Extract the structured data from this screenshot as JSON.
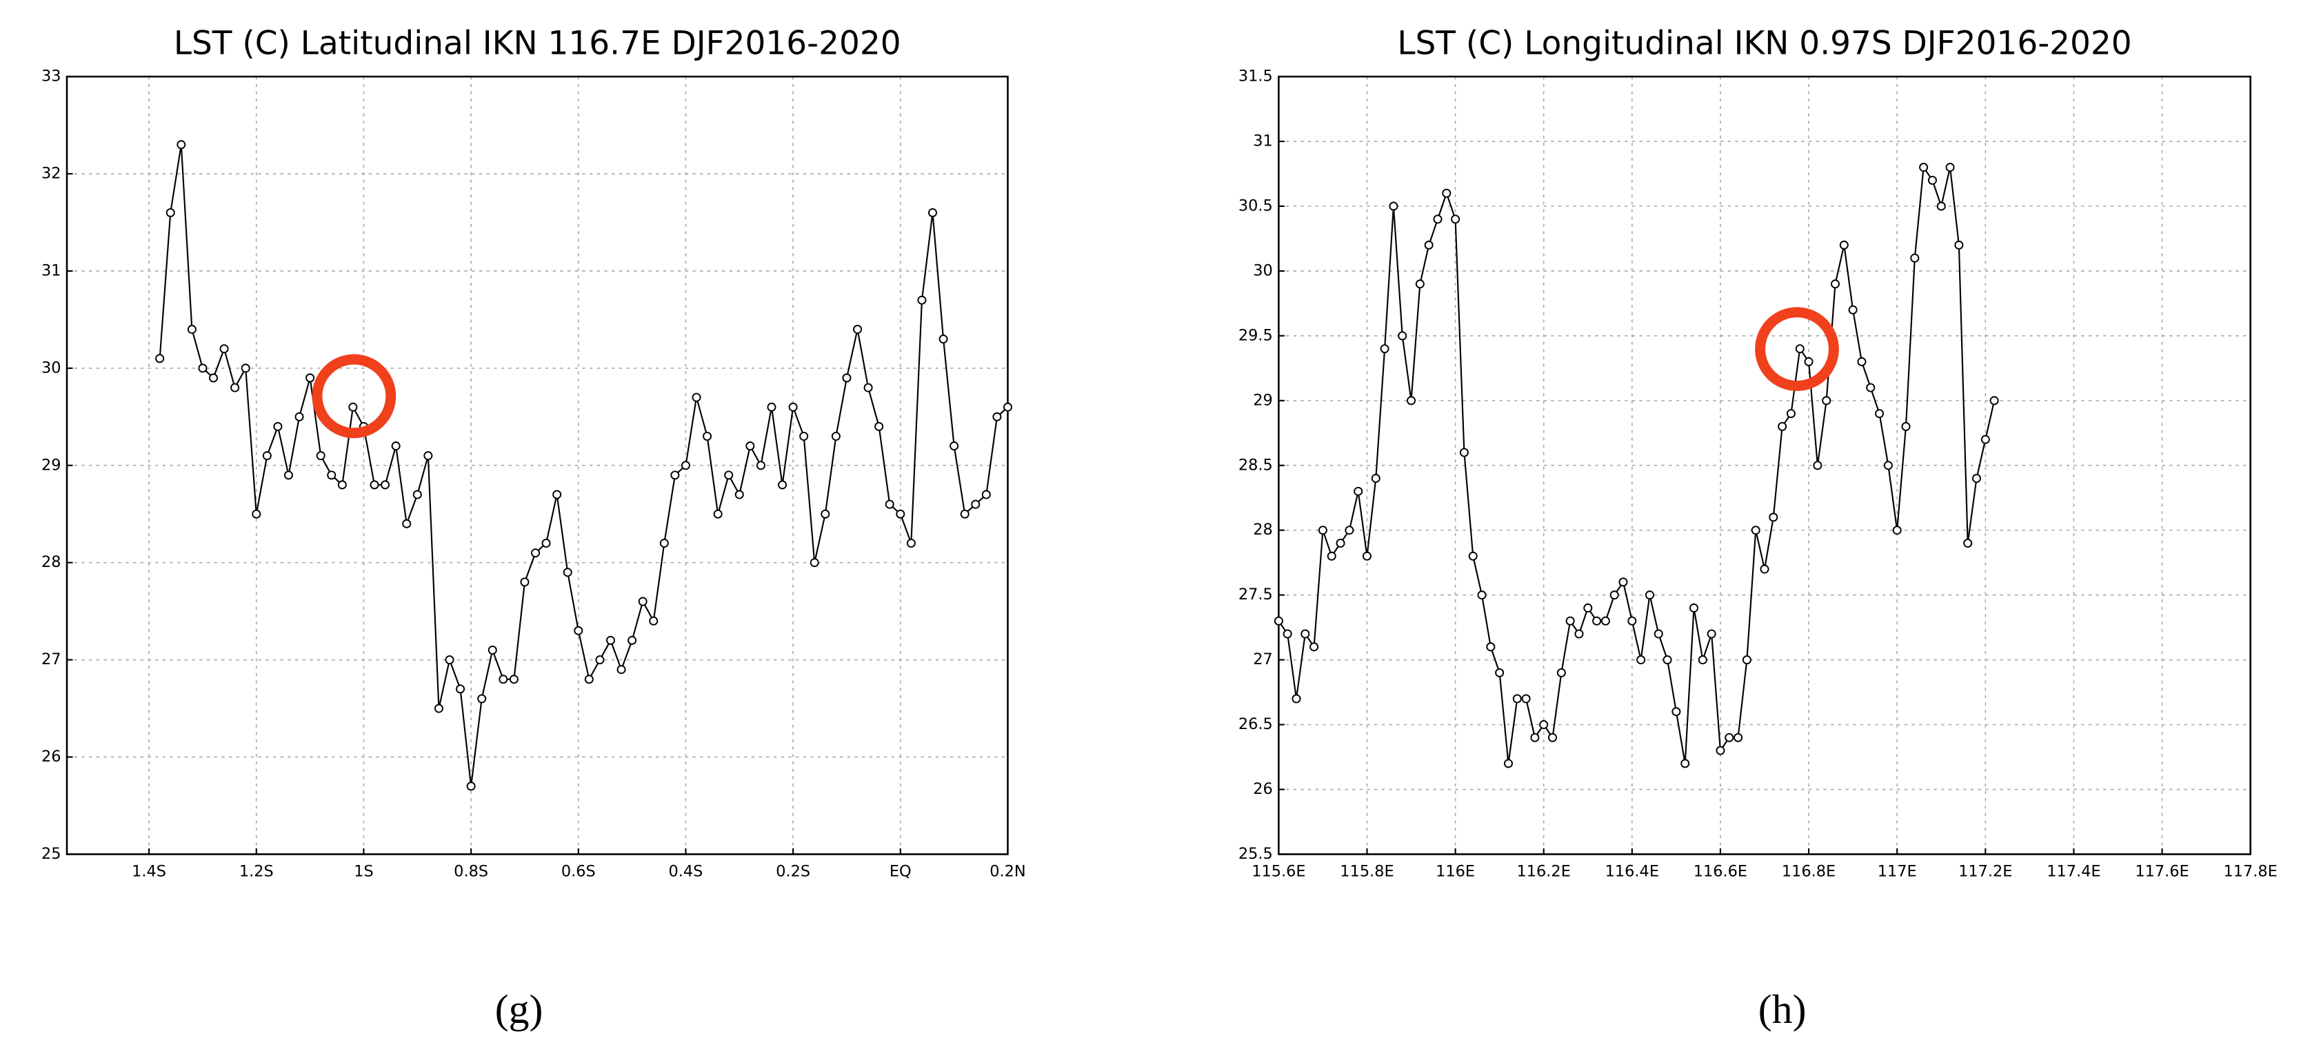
{
  "chart_data": [
    {
      "type": "line",
      "title": "LST (C) Latitudinal IKN 116.7E DJF2016-2020",
      "caption": "(g)",
      "x": [
        -1.38,
        -1.36,
        -1.34,
        -1.32,
        -1.3,
        -1.28,
        -1.26,
        -1.24,
        -1.22,
        -1.2,
        -1.18,
        -1.16,
        -1.14,
        -1.12,
        -1.1,
        -1.08,
        -1.06,
        -1.04,
        -1.02,
        -1,
        -0.98,
        -0.96,
        -0.94,
        -0.92,
        -0.9,
        -0.88,
        -0.86,
        -0.84,
        -0.82,
        -0.8,
        -0.78,
        -0.76,
        -0.74,
        -0.72,
        -0.7,
        -0.68,
        -0.66,
        -0.64,
        -0.62,
        -0.6,
        -0.58,
        -0.56,
        -0.54,
        -0.52,
        -0.5,
        -0.48,
        -0.46,
        -0.44,
        -0.42,
        -0.4,
        -0.38,
        -0.36,
        -0.34,
        -0.32,
        -0.3,
        -0.28,
        -0.26,
        -0.24,
        -0.22,
        -0.2,
        -0.18,
        -0.16,
        -0.14,
        -0.12,
        -0.1,
        -0.08,
        -0.06,
        -0.04,
        -0.02,
        0,
        0.02,
        0.04,
        0.06,
        0.08,
        0.1,
        0.12,
        0.14,
        0.16,
        0.18,
        0.2
      ],
      "values": [
        30.1,
        31.6,
        32.3,
        30.4,
        30.0,
        29.9,
        30.2,
        29.8,
        30.0,
        28.5,
        29.1,
        29.4,
        28.9,
        29.5,
        29.9,
        29.1,
        28.9,
        28.8,
        29.6,
        29.4,
        28.8,
        28.8,
        29.2,
        28.4,
        28.7,
        29.1,
        26.5,
        27.0,
        26.7,
        25.7,
        26.6,
        27.1,
        26.8,
        26.8,
        27.8,
        28.1,
        28.2,
        28.7,
        27.9,
        27.3,
        26.8,
        27.0,
        27.2,
        26.9,
        27.2,
        27.6,
        27.4,
        28.2,
        28.9,
        29.0,
        29.7,
        29.3,
        28.5,
        28.9,
        28.7,
        29.2,
        29.0,
        29.6,
        28.8,
        29.6,
        29.3,
        28.0,
        28.5,
        29.3,
        29.9,
        30.4,
        29.8,
        29.4,
        28.6,
        28.5,
        28.2,
        30.7,
        31.6,
        30.3,
        29.2,
        28.5,
        28.6,
        28.7,
        29.5,
        29.6
      ],
      "color": "#000000",
      "xlim": [
        -1.553,
        0.2
      ],
      "xticks": [
        {
          "value": -1.4,
          "label": "1.4S"
        },
        {
          "value": -1.2,
          "label": "1.2S"
        },
        {
          "value": -1,
          "label": "1S"
        },
        {
          "value": -0.8,
          "label": "0.8S"
        },
        {
          "value": -0.6,
          "label": "0.6S"
        },
        {
          "value": -0.4,
          "label": "0.4S"
        },
        {
          "value": -0.2,
          "label": "0.2S"
        },
        {
          "value": 0,
          "label": "EQ"
        },
        {
          "value": 0.2,
          "label": "0.2N"
        }
      ],
      "ylim": [
        25,
        33
      ],
      "yticks": [
        25,
        26,
        27,
        28,
        29,
        30,
        31,
        32,
        33
      ],
      "grid": true
    },
    {
      "type": "line",
      "title": "LST (C) Longitudinal IKN 0.97S DJF2016-2020",
      "caption": "(h)",
      "x": [
        115.6,
        115.62,
        115.64,
        115.66,
        115.68,
        115.7,
        115.72,
        115.74,
        115.76,
        115.78,
        115.8,
        115.82,
        115.84,
        115.86,
        115.88,
        115.9,
        115.92,
        115.94,
        115.96,
        115.98,
        116,
        116.02,
        116.04,
        116.06,
        116.08,
        116.1,
        116.12,
        116.14,
        116.16,
        116.18,
        116.2,
        116.22,
        116.24,
        116.26,
        116.28,
        116.3,
        116.32,
        116.34,
        116.36,
        116.38,
        116.4,
        116.42,
        116.44,
        116.46,
        116.48,
        116.5,
        116.52,
        116.54,
        116.56,
        116.58,
        116.6,
        116.62,
        116.64,
        116.66,
        116.68,
        116.7,
        116.72,
        116.74,
        116.76,
        116.78,
        116.8,
        116.82,
        116.84,
        116.86,
        116.88,
        116.9,
        116.92,
        116.94,
        116.96,
        116.98,
        117,
        117.02,
        117.04,
        117.06,
        117.08,
        117.1,
        117.12,
        117.14,
        117.16,
        117.18,
        117.2,
        117.22
      ],
      "values": [
        27.3,
        27.2,
        26.7,
        27.2,
        27.1,
        28.0,
        27.8,
        27.9,
        28.0,
        28.3,
        27.8,
        28.4,
        29.4,
        30.5,
        29.5,
        29.0,
        29.9,
        30.2,
        30.4,
        30.6,
        30.4,
        28.6,
        27.8,
        27.5,
        27.1,
        26.9,
        26.2,
        26.7,
        26.7,
        26.4,
        26.5,
        26.4,
        26.9,
        27.3,
        27.2,
        27.4,
        27.3,
        27.3,
        27.5,
        27.6,
        27.3,
        27.0,
        27.5,
        27.2,
        27.0,
        26.6,
        26.2,
        27.4,
        27.0,
        27.2,
        26.3,
        26.4,
        26.4,
        27.0,
        28.0,
        27.7,
        28.1,
        28.8,
        28.9,
        29.4,
        29.3,
        28.5,
        29.0,
        29.9,
        30.2,
        29.7,
        29.3,
        29.1,
        28.9,
        28.5,
        28.0,
        28.8,
        30.1,
        30.8,
        30.7,
        30.5,
        30.8,
        30.2,
        27.9,
        28.4,
        28.7,
        29.0
      ],
      "color": "#000000",
      "xlim": [
        115.6,
        117.8
      ],
      "xticks": [
        {
          "value": 115.6,
          "label": "115.6E"
        },
        {
          "value": 115.8,
          "label": "115.8E"
        },
        {
          "value": 116,
          "label": "116E"
        },
        {
          "value": 116.2,
          "label": "116.2E"
        },
        {
          "value": 116.4,
          "label": "116.4E"
        },
        {
          "value": 116.6,
          "label": "116.6E"
        },
        {
          "value": 116.8,
          "label": "116.8E"
        },
        {
          "value": 117,
          "label": "117E"
        },
        {
          "value": 117.2,
          "label": "117.2E"
        },
        {
          "value": 117.4,
          "label": "117.4E"
        },
        {
          "value": 117.6,
          "label": "117.6E"
        },
        {
          "value": 117.8,
          "label": "117.8E"
        }
      ],
      "ylim": [
        25.5,
        31.5
      ],
      "yticks": [
        25.5,
        26,
        26.5,
        27,
        27.5,
        28,
        28.5,
        29,
        29.5,
        30,
        30.5,
        31,
        31.5
      ],
      "grid": true
    }
  ]
}
